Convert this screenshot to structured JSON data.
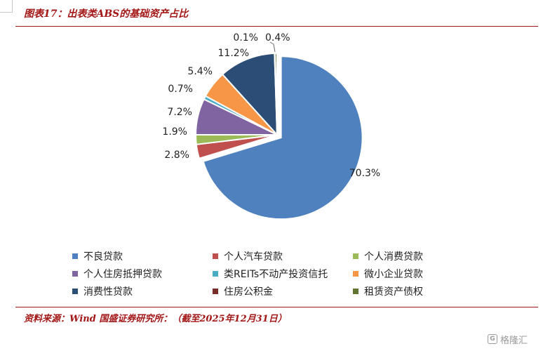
{
  "title": "图表17：出表类ABS的基础资产占比",
  "source": "资料来源：Wind 国盛证券研究所：（截至2025年12月31日）",
  "watermark": {
    "icon": "g-logo-icon",
    "text": "格隆汇"
  },
  "chart_data": {
    "type": "pie",
    "start": "12 o'clock, clockwise",
    "legend_position": "bottom",
    "slices": [
      {
        "label": "不良贷款",
        "value": 70.3,
        "value_label": "70.3%",
        "color": "#4e81bd"
      },
      {
        "label": "个人汽车贷款",
        "value": 2.8,
        "value_label": "2.8%",
        "color": "#c0504d"
      },
      {
        "label": "个人消费贷款",
        "value": 1.9,
        "value_label": "1.9%",
        "color": "#9bbb59"
      },
      {
        "label": "个人住房抵押贷款",
        "value": 7.2,
        "value_label": "7.2%",
        "color": "#8064a2"
      },
      {
        "label": "类REITs不动产投资信托",
        "value": 0.7,
        "value_label": "0.7%",
        "color": "#4bacc6"
      },
      {
        "label": "微小企业贷款",
        "value": 5.4,
        "value_label": "5.4%",
        "color": "#f79646"
      },
      {
        "label": "消费性贷款",
        "value": 11.2,
        "value_label": "11.2%",
        "color": "#2c4d75"
      },
      {
        "label": "住房公积金",
        "value": 0.1,
        "value_label": "0.1%",
        "color": "#772c2a"
      },
      {
        "label": "租赁资产债权",
        "value": 0.4,
        "value_label": "0.4%",
        "color": "#5f7530"
      }
    ]
  }
}
